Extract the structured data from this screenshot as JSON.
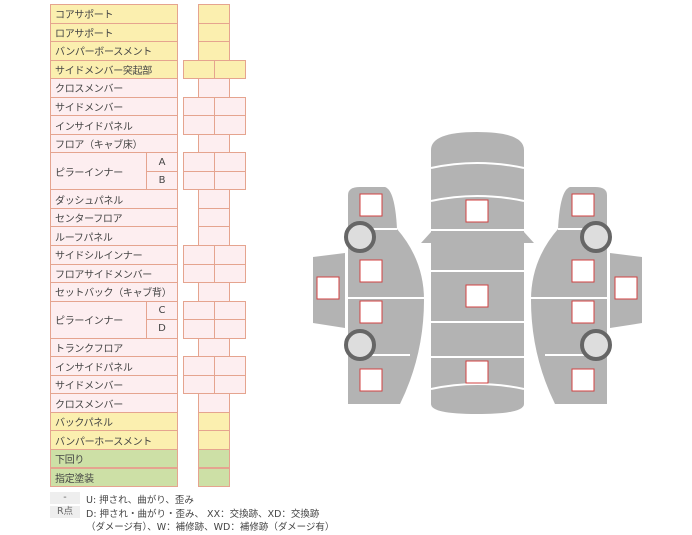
{
  "rows": [
    {
      "label": "コアサポート",
      "cells": 1,
      "color": "yellow"
    },
    {
      "label": "ロアサポート",
      "cells": 1,
      "color": "yellow"
    },
    {
      "label": "バンパーボースメント",
      "cells": 1,
      "color": "yellow"
    },
    {
      "label": "サイドメンバー突起部",
      "cells": 2,
      "color": "yellow"
    },
    {
      "label": "クロスメンバー",
      "cells": 1,
      "color": "pink"
    },
    {
      "label": "サイドメンバー",
      "cells": 2,
      "color": "pink"
    },
    {
      "label": "インサイドパネル",
      "cells": 2,
      "color": "pink"
    },
    {
      "label": "フロア（キャブ床）",
      "cells": 1,
      "color": "pink"
    },
    {
      "label": "ピラーインナー",
      "sub": "A",
      "cells": 2,
      "color": "pink"
    },
    {
      "label": "",
      "sub": "B",
      "cells": 2,
      "color": "pink"
    },
    {
      "label": "ダッシュパネル",
      "cells": 1,
      "color": "pink"
    },
    {
      "label": "センターフロア",
      "cells": 1,
      "color": "pink"
    },
    {
      "label": "ルーフパネル",
      "cells": 1,
      "color": "pink"
    },
    {
      "label": "サイドシルインナー",
      "cells": 2,
      "color": "pink"
    },
    {
      "label": "フロアサイドメンバー",
      "cells": 2,
      "color": "pink"
    },
    {
      "label": "セットバック（キャブ背）",
      "cells": 1,
      "color": "pink"
    },
    {
      "label": "ピラーインナー",
      "sub": "C",
      "cells": 2,
      "color": "pink"
    },
    {
      "label": "",
      "sub": "D",
      "cells": 2,
      "color": "pink"
    },
    {
      "label": "トランクフロア",
      "cells": 1,
      "color": "pink"
    },
    {
      "label": "インサイドパネル",
      "cells": 2,
      "color": "pink"
    },
    {
      "label": "サイドメンバー",
      "cells": 2,
      "color": "pink"
    },
    {
      "label": "クロスメンバー",
      "cells": 1,
      "color": "pink"
    },
    {
      "label": "バックパネル",
      "cells": 1,
      "color": "yellow"
    },
    {
      "label": "バンパーホースメント",
      "cells": 1,
      "color": "yellow"
    },
    {
      "label": "下回り",
      "cells": 1,
      "color": "green"
    },
    {
      "label": "指定塗装",
      "cells": 1,
      "color": "green"
    }
  ],
  "legend": {
    "key1": "-",
    "text1": "U: 押され、曲がり、歪み",
    "key2": "R点",
    "text2": "D: 押され・曲がり・歪み、 XX：交換跡、XD：交換跡",
    "text3": "（ダメージ有）、W：補修跡、WD：補修跡（ダメージ有）"
  },
  "colors": {
    "yellow": "#fbefaf",
    "pink": "#fdeef0",
    "green": "#cde0a6",
    "border": "#e5a48f",
    "car": "#b3b3b3",
    "marker": "#d04040"
  }
}
